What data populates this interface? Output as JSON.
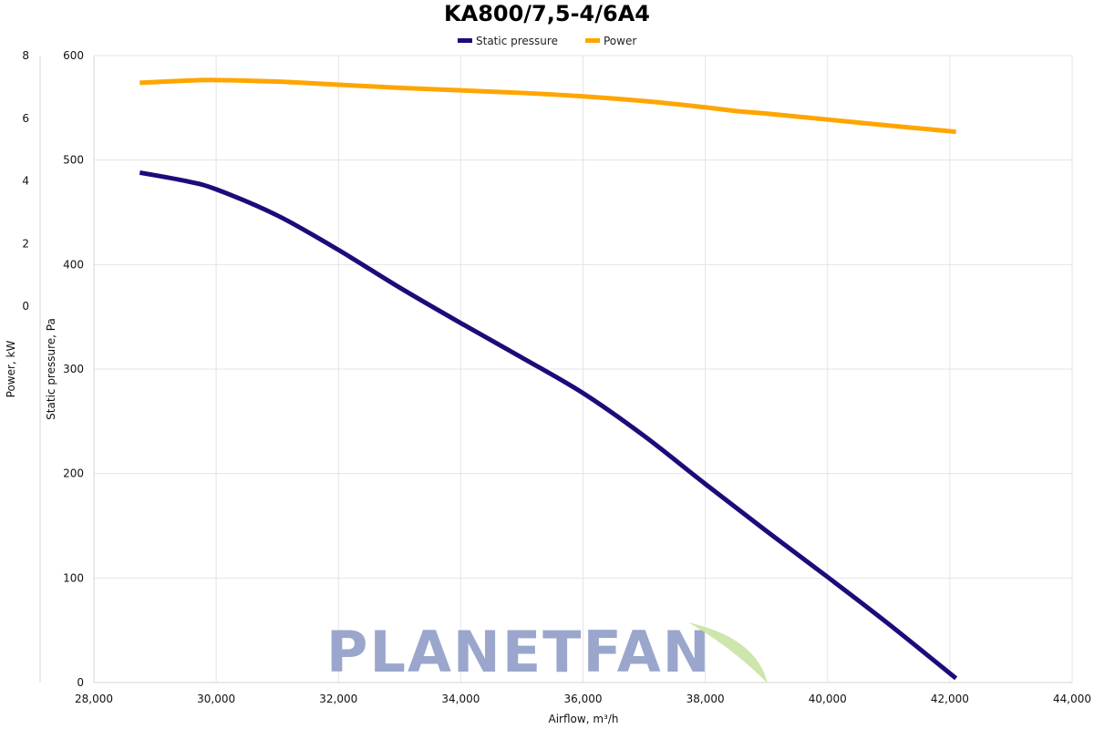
{
  "watermark": {
    "text": "PLANETFAN"
  },
  "chart_data": {
    "type": "line",
    "title": "KA800/7,5-4/6A4",
    "xlabel": "Airflow, m³/h",
    "xlim": [
      28000,
      44000
    ],
    "xticks": [
      28000,
      30000,
      32000,
      34000,
      36000,
      38000,
      40000,
      42000,
      44000
    ],
    "xtick_labels": [
      "28,000",
      "30,000",
      "32,000",
      "34,000",
      "36,000",
      "38,000",
      "40,000",
      "42,000",
      "44,000"
    ],
    "y_left": {
      "label": "Static pressure, Pa",
      "lim": [
        0,
        600
      ],
      "ticks": [
        0,
        100,
        200,
        300,
        400,
        500,
        600
      ],
      "tick_labels": [
        "0",
        "100",
        "200",
        "300",
        "400",
        "500",
        "600"
      ]
    },
    "y_right": {
      "label": "Power, kW",
      "lim": [
        -12,
        8
      ],
      "ticks": [
        0,
        2,
        4,
        6,
        8
      ],
      "tick_labels": [
        "0",
        "2",
        "4",
        "6",
        "8"
      ]
    },
    "grid": true,
    "legend": {
      "placement": "top-center"
    },
    "series": [
      {
        "name": "Static pressure",
        "axis": "y_left",
        "color": "#1f0a7a",
        "x": [
          28750,
          29500,
          30000,
          31000,
          32000,
          33000,
          34000,
          35000,
          36000,
          37000,
          38000,
          39000,
          40000,
          41000,
          42100
        ],
        "y": [
          488,
          480,
          472,
          447,
          414,
          378,
          344,
          311,
          277,
          236,
          190,
          145,
          101,
          56,
          4
        ]
      },
      {
        "name": "Power",
        "axis": "y_right",
        "color": "#ffa500",
        "x": [
          28750,
          29500,
          30000,
          31000,
          32000,
          33000,
          34000,
          35000,
          36000,
          37000,
          38000,
          38500,
          39000,
          40000,
          41000,
          42100
        ],
        "y": [
          7.13,
          7.2,
          7.22,
          7.17,
          7.07,
          6.97,
          6.89,
          6.81,
          6.7,
          6.55,
          6.35,
          6.23,
          6.15,
          5.96,
          5.77,
          5.57
        ]
      }
    ]
  }
}
